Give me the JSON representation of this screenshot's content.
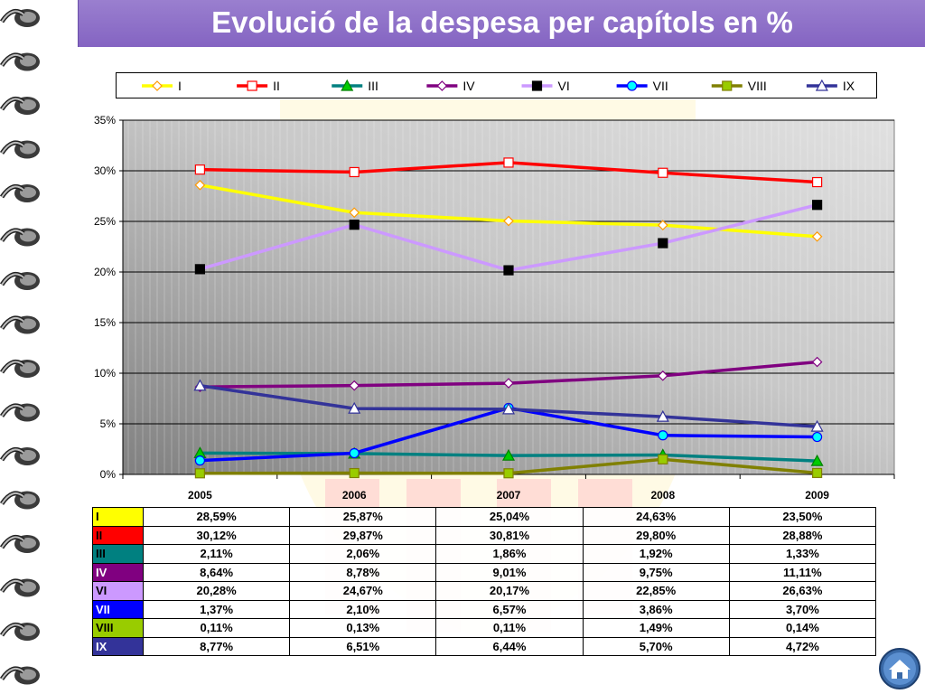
{
  "title": "Evolució de la despesa per capítols en %",
  "chart_data": {
    "type": "line",
    "categories": [
      "2005",
      "2006",
      "2007",
      "2008",
      "2009"
    ],
    "y_ticks": [
      "0%",
      "5%",
      "10%",
      "15%",
      "20%",
      "25%",
      "30%",
      "35%"
    ],
    "ylim": [
      0,
      35
    ],
    "grid": true,
    "legend_position": "top",
    "series": [
      {
        "name": "I",
        "color": "#ffff00",
        "marker": "diamond",
        "values": [
          28.59,
          25.87,
          25.04,
          24.63,
          23.5
        ],
        "labels": [
          "28,59%",
          "25,87%",
          "25,04%",
          "24,63%",
          "23,50%"
        ]
      },
      {
        "name": "II",
        "color": "#ff0000",
        "marker": "square",
        "values": [
          30.12,
          29.87,
          30.81,
          29.8,
          28.88
        ],
        "labels": [
          "30,12%",
          "29,87%",
          "30,81%",
          "29,80%",
          "28,88%"
        ]
      },
      {
        "name": "III",
        "color": "#008080",
        "marker": "triangle",
        "values": [
          2.11,
          2.06,
          1.86,
          1.92,
          1.33
        ],
        "labels": [
          "2,11%",
          "2,06%",
          "1,86%",
          "1,92%",
          "1,33%"
        ]
      },
      {
        "name": "IV",
        "color": "#800080",
        "marker": "diamond",
        "values": [
          8.64,
          8.78,
          9.01,
          9.75,
          11.11
        ],
        "labels": [
          "8,64%",
          "8,78%",
          "9,01%",
          "9,75%",
          "11,11%"
        ]
      },
      {
        "name": "VI",
        "color": "#cc99ff",
        "marker": "square",
        "values": [
          20.28,
          24.67,
          20.17,
          22.85,
          26.63
        ],
        "labels": [
          "20,28%",
          "24,67%",
          "20,17%",
          "22,85%",
          "26,63%"
        ]
      },
      {
        "name": "VII",
        "color": "#0000ff",
        "marker": "circle",
        "values": [
          1.37,
          2.1,
          6.57,
          3.86,
          3.7
        ],
        "labels": [
          "1,37%",
          "2,10%",
          "6,57%",
          "3,86%",
          "3,70%"
        ]
      },
      {
        "name": "VIII",
        "color": "#808000",
        "marker": "square",
        "values": [
          0.11,
          0.13,
          0.11,
          1.49,
          0.14
        ],
        "labels": [
          "0,11%",
          "0,13%",
          "0,11%",
          "1,49%",
          "0,14%"
        ]
      },
      {
        "name": "IX",
        "color": "#333399",
        "marker": "triangle",
        "values": [
          8.77,
          6.51,
          6.44,
          5.7,
          4.72
        ],
        "labels": [
          "8,77%",
          "6,51%",
          "6,44%",
          "5,70%",
          "4,72%"
        ]
      }
    ],
    "table_row_colors": {
      "I": "#ffff00",
      "II": "#ff0000",
      "III": "#008080",
      "IV": "#800080",
      "VI": "#cc99ff",
      "VII": "#0000ff",
      "VIII": "#99cc00",
      "IX": "#333399"
    },
    "table_label_colors": {
      "I": "#000000",
      "II": "#000000",
      "III": "#000000",
      "IV": "#ffffff",
      "VI": "#000000",
      "VII": "#ffffff",
      "VIII": "#000000",
      "IX": "#ffffff"
    }
  },
  "icons": {
    "home": "home-icon",
    "binder": "binder-ring-icon"
  },
  "colors": {
    "title_bar": "#8464c2",
    "plot_bg_dark": "#808080",
    "plot_bg_light": "#e0e0e0"
  }
}
